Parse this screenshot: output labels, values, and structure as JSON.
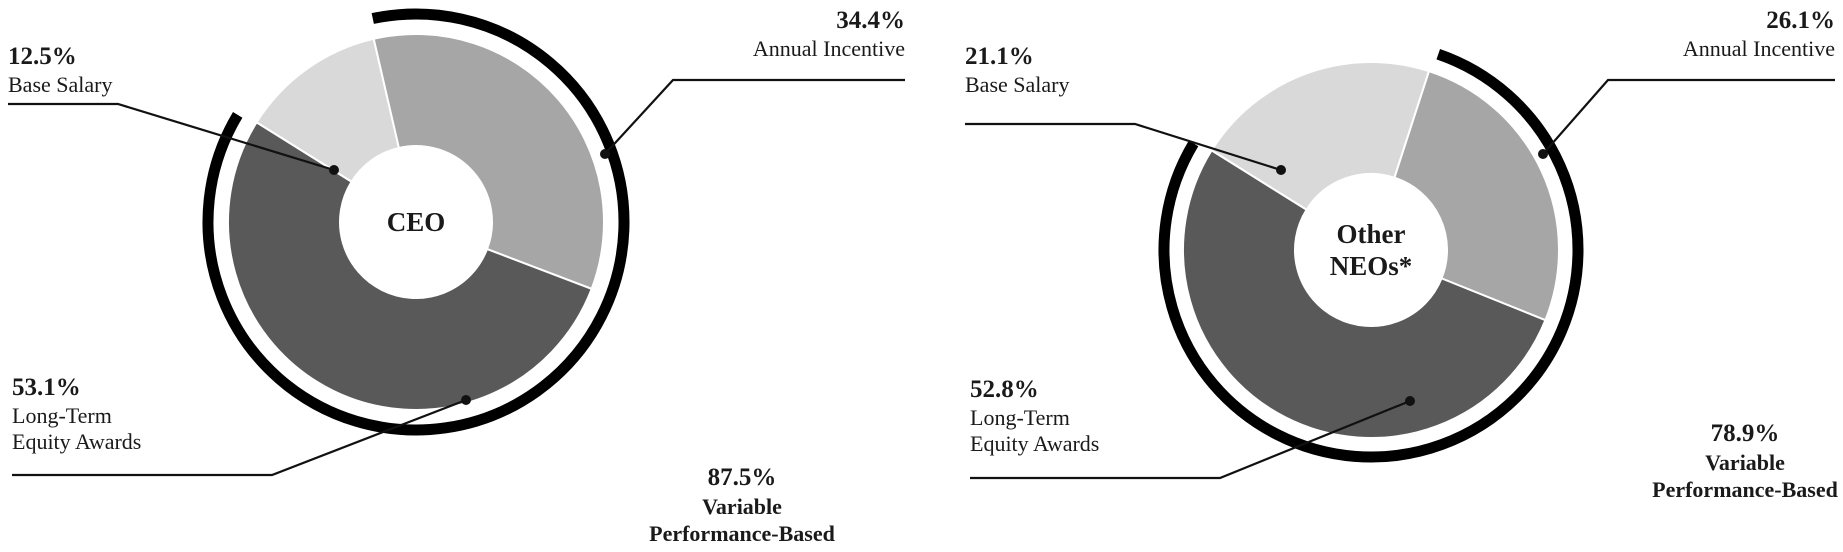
{
  "chart_data": [
    {
      "type": "pie",
      "center_label": [
        "CEO"
      ],
      "categories": [
        "Base Salary",
        "Annual Incentive",
        "Long-Term Equity Awards"
      ],
      "values": [
        12.5,
        34.4,
        53.1
      ],
      "colors": [
        "#d9d9d9",
        "#a6a6a6",
        "#595959"
      ],
      "labels": [
        {
          "pct": "12.5%",
          "lines": [
            "Base Salary"
          ]
        },
        {
          "pct": "34.4%",
          "lines": [
            "Annual Incentive"
          ]
        },
        {
          "pct": "53.1%",
          "lines": [
            "Long-Term",
            "Equity Awards"
          ]
        }
      ],
      "variable": {
        "pct": "87.5%",
        "value": 87.5,
        "lines": [
          "Variable",
          "Performance-Based"
        ]
      }
    },
    {
      "type": "pie",
      "center_label": [
        "Other",
        "NEOs*"
      ],
      "categories": [
        "Base Salary",
        "Annual Incentive",
        "Long-Term Equity Awards"
      ],
      "values": [
        21.1,
        26.1,
        52.8
      ],
      "colors": [
        "#d9d9d9",
        "#a6a6a6",
        "#595959"
      ],
      "labels": [
        {
          "pct": "21.1%",
          "lines": [
            "Base Salary"
          ]
        },
        {
          "pct": "26.1%",
          "lines": [
            "Annual Incentive"
          ]
        },
        {
          "pct": "52.8%",
          "lines": [
            "Long-Term",
            "Equity Awards"
          ]
        }
      ],
      "variable": {
        "pct": "78.9%",
        "value": 78.9,
        "lines": [
          "Variable",
          "Performance-Based"
        ]
      }
    }
  ]
}
